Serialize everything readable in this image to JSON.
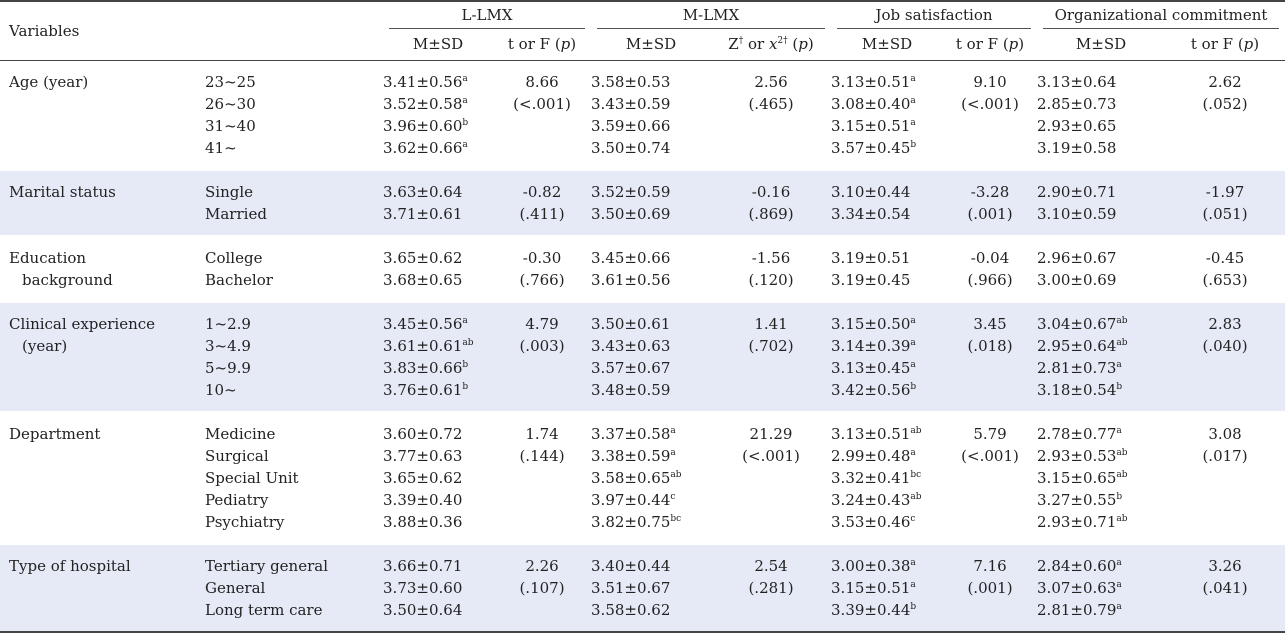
{
  "header": {
    "variables_label": "Variables",
    "groups": [
      "L-LMX",
      "M-LMX",
      "Job satisfaction",
      "Organizational commitment"
    ],
    "subheaders": [
      {
        "text": "M±SD"
      },
      {
        "text": "t or F (p)"
      },
      {
        "text": "M±SD"
      },
      {
        "text": "Z† or x2† (p)"
      },
      {
        "text": "M±SD"
      },
      {
        "text": "t or F (p)"
      },
      {
        "text": "M±SD"
      },
      {
        "text": "t or F (p)"
      }
    ]
  },
  "rows": [
    {
      "variable": [
        "Age (year)"
      ],
      "shaded": false,
      "categories": [
        "23~25",
        "26~30",
        "31~40",
        "41~"
      ],
      "llmx": [
        [
          "3.41±0.56",
          "a"
        ],
        [
          "3.52±0.58",
          "a"
        ],
        [
          "3.96±0.60",
          "b"
        ],
        [
          "3.62±0.66",
          "a"
        ]
      ],
      "llmx_test": [
        "8.66",
        "(<.001)"
      ],
      "mlmx": [
        [
          "3.58±0.53",
          ""
        ],
        [
          "3.43±0.59",
          ""
        ],
        [
          "3.59±0.66",
          ""
        ],
        [
          "3.50±0.74",
          ""
        ]
      ],
      "mlmx_test": [
        "2.56",
        "(.465)"
      ],
      "js": [
        [
          "3.13±0.51",
          "a"
        ],
        [
          "3.08±0.40",
          "a"
        ],
        [
          "3.15±0.51",
          "a"
        ],
        [
          "3.57±0.45",
          "b"
        ]
      ],
      "js_test": [
        "9.10",
        "(<.001)"
      ],
      "oc": [
        [
          "3.13±0.64",
          ""
        ],
        [
          "2.85±0.73",
          ""
        ],
        [
          "2.93±0.65",
          ""
        ],
        [
          "3.19±0.58",
          ""
        ]
      ],
      "oc_test": [
        "2.62",
        "(.052)"
      ]
    },
    {
      "variable": [
        "Marital status"
      ],
      "shaded": true,
      "categories": [
        "Single",
        "Married"
      ],
      "llmx": [
        [
          "3.63±0.64",
          ""
        ],
        [
          "3.71±0.61",
          ""
        ]
      ],
      "llmx_test": [
        "-0.82",
        "(.411)"
      ],
      "mlmx": [
        [
          "3.52±0.59",
          ""
        ],
        [
          "3.50±0.69",
          ""
        ]
      ],
      "mlmx_test": [
        "-0.16",
        "(.869)"
      ],
      "js": [
        [
          "3.10±0.44",
          ""
        ],
        [
          "3.34±0.54",
          ""
        ]
      ],
      "js_test": [
        "-3.28",
        "(.001)"
      ],
      "oc": [
        [
          "2.90±0.71",
          ""
        ],
        [
          "3.10±0.59",
          ""
        ]
      ],
      "oc_test": [
        "-1.97",
        "(.051)"
      ]
    },
    {
      "variable": [
        "Education",
        "background"
      ],
      "shaded": false,
      "categories": [
        "College",
        "Bachelor"
      ],
      "llmx": [
        [
          "3.65±0.62",
          ""
        ],
        [
          "3.68±0.65",
          ""
        ]
      ],
      "llmx_test": [
        "-0.30",
        "(.766)"
      ],
      "mlmx": [
        [
          "3.45±0.66",
          ""
        ],
        [
          "3.61±0.56",
          ""
        ]
      ],
      "mlmx_test": [
        "-1.56",
        "(.120)"
      ],
      "js": [
        [
          "3.19±0.51",
          ""
        ],
        [
          "3.19±0.45",
          ""
        ]
      ],
      "js_test": [
        "-0.04",
        "(.966)"
      ],
      "oc": [
        [
          "2.96±0.67",
          ""
        ],
        [
          "3.00±0.69",
          ""
        ]
      ],
      "oc_test": [
        "-0.45",
        "(.653)"
      ]
    },
    {
      "variable": [
        "Clinical experience",
        "(year)"
      ],
      "shaded": true,
      "categories": [
        "1~2.9",
        "3~4.9",
        "5~9.9",
        "10~"
      ],
      "llmx": [
        [
          "3.45±0.56",
          "a"
        ],
        [
          "3.61±0.61",
          "ab"
        ],
        [
          "3.83±0.66",
          "b"
        ],
        [
          "3.76±0.61",
          "b"
        ]
      ],
      "llmx_test": [
        "4.79",
        "(.003)"
      ],
      "mlmx": [
        [
          "3.50±0.61",
          ""
        ],
        [
          "3.43±0.63",
          ""
        ],
        [
          "3.57±0.67",
          ""
        ],
        [
          "3.48±0.59",
          ""
        ]
      ],
      "mlmx_test": [
        "1.41",
        "(.702)"
      ],
      "js": [
        [
          "3.15±0.50",
          "a"
        ],
        [
          "3.14±0.39",
          "a"
        ],
        [
          "3.13±0.45",
          "a"
        ],
        [
          "3.42±0.56",
          "b"
        ]
      ],
      "js_test": [
        "3.45",
        "(.018)"
      ],
      "oc": [
        [
          "3.04±0.67",
          "ab"
        ],
        [
          "2.95±0.64",
          "ab"
        ],
        [
          "2.81±0.73",
          "a"
        ],
        [
          "3.18±0.54",
          "b"
        ]
      ],
      "oc_test": [
        "2.83",
        "(.040)"
      ]
    },
    {
      "variable": [
        "Department"
      ],
      "shaded": false,
      "categories": [
        "Medicine",
        "Surgical",
        "Special Unit",
        "Pediatry",
        "Psychiatry"
      ],
      "llmx": [
        [
          "3.60±0.72",
          ""
        ],
        [
          "3.77±0.63",
          ""
        ],
        [
          "3.65±0.62",
          ""
        ],
        [
          "3.39±0.40",
          ""
        ],
        [
          "3.88±0.36",
          ""
        ]
      ],
      "llmx_test": [
        "1.74",
        "(.144)"
      ],
      "mlmx": [
        [
          "3.37±0.58",
          "a"
        ],
        [
          "3.38±0.59",
          "a"
        ],
        [
          "3.58±0.65",
          "ab"
        ],
        [
          "3.97±0.44",
          "c"
        ],
        [
          "3.82±0.75",
          "bc"
        ]
      ],
      "mlmx_test": [
        "21.29",
        "(<.001)"
      ],
      "js": [
        [
          "3.13±0.51",
          "ab"
        ],
        [
          "2.99±0.48",
          "a"
        ],
        [
          "3.32±0.41",
          "bc"
        ],
        [
          "3.24±0.43",
          "ab"
        ],
        [
          "3.53±0.46",
          "c"
        ]
      ],
      "js_test": [
        "5.79",
        "(<.001)"
      ],
      "oc": [
        [
          "2.78±0.77",
          "a"
        ],
        [
          "2.93±0.53",
          "ab"
        ],
        [
          "3.15±0.65",
          "ab"
        ],
        [
          "3.27±0.55",
          "b"
        ],
        [
          "2.93±0.71",
          "ab"
        ]
      ],
      "oc_test": [
        "3.08",
        "(.017)"
      ]
    },
    {
      "variable": [
        "Type of hospital"
      ],
      "shaded": true,
      "categories": [
        "Tertiary general",
        "General",
        "Long term care"
      ],
      "llmx": [
        [
          "3.66±0.71",
          ""
        ],
        [
          "3.73±0.60",
          ""
        ],
        [
          "3.50±0.64",
          ""
        ]
      ],
      "llmx_test": [
        "2.26",
        "(.107)"
      ],
      "mlmx": [
        [
          "3.40±0.44",
          ""
        ],
        [
          "3.51±0.67",
          ""
        ],
        [
          "3.58±0.62",
          ""
        ]
      ],
      "mlmx_test": [
        "2.54",
        "(.281)"
      ],
      "js": [
        [
          "3.00±0.38",
          "a"
        ],
        [
          "3.15±0.51",
          "a"
        ],
        [
          "3.39±0.44",
          "b"
        ]
      ],
      "js_test": [
        "7.16",
        "(.001)"
      ],
      "oc": [
        [
          "2.84±0.60",
          "a"
        ],
        [
          "3.07±0.63",
          "a"
        ],
        [
          "2.81±0.79",
          "a"
        ]
      ],
      "oc_test": [
        "3.26",
        "(.041)"
      ]
    }
  ]
}
